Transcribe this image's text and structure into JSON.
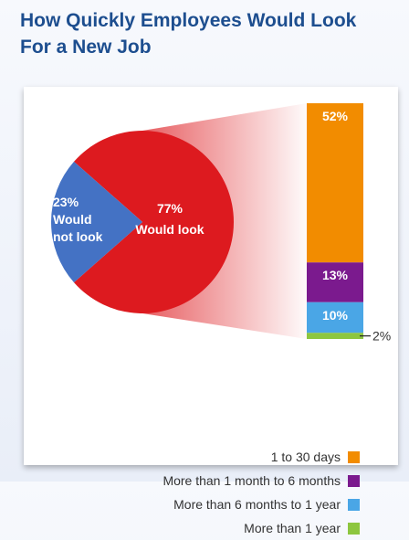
{
  "title_line1": "How Quickly Employees Would Look",
  "title_line2": "For a New Job",
  "chart_data": [
    {
      "type": "pie",
      "slices": [
        {
          "percent": 77,
          "value_label": "77%",
          "label": "Would look",
          "color": "#dd1a1f"
        },
        {
          "percent": 23,
          "value_label": "23%",
          "label_lines": [
            "Would",
            "not look"
          ],
          "color": "#4472c4"
        }
      ]
    },
    {
      "type": "bar",
      "stacked": true,
      "categories": [
        "1 to 30 days",
        "More than 1 month to 6 months",
        "More than 6 months to 1 year",
        "More than 1 year"
      ],
      "values": [
        52,
        13,
        10,
        2
      ],
      "value_labels": [
        "52%",
        "13%",
        "10%",
        "2%"
      ],
      "colors": [
        "#f28c00",
        "#7b1a8e",
        "#4aa6e6",
        "#8dc63f"
      ],
      "legend_position": "bottom-right"
    }
  ]
}
